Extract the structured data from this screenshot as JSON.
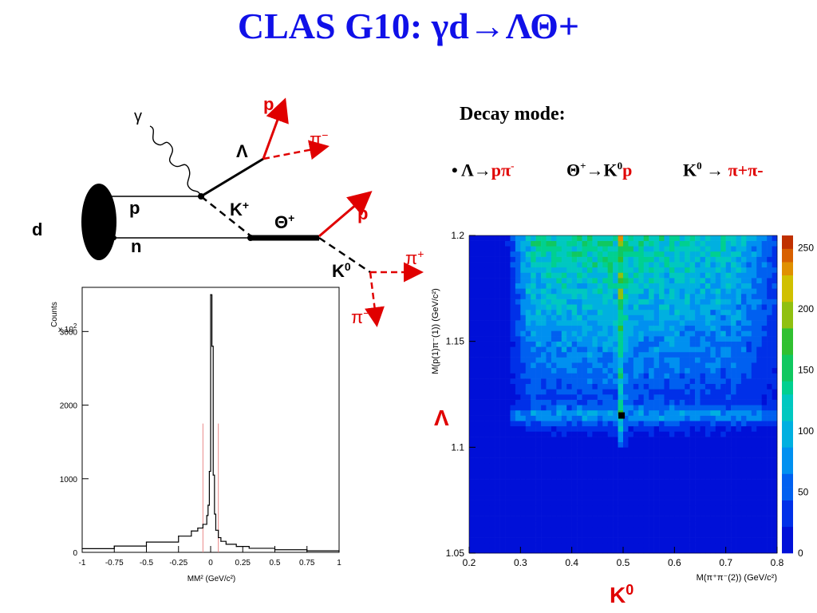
{
  "title": "CLAS G10: γd→ΛΘ+",
  "decay": {
    "heading": "Decay mode:",
    "bullet": "•",
    "lambda": {
      "parent": "Λ→",
      "products": "pπ",
      "charge": "-"
    },
    "theta": {
      "parent": "Θ",
      "charge": "+",
      "arrow": "→K",
      "zero": "0",
      "product": "p"
    },
    "kaon": {
      "parent": "K",
      "zero": "0",
      "arrow": " → ",
      "products": "π+π-"
    }
  },
  "diagram": {
    "gamma": "γ",
    "d": "d",
    "p": "p",
    "n": "n",
    "lambda": "Λ",
    "kplus": "K",
    "kplus_sup": "+",
    "theta": "Θ",
    "theta_sup": "+",
    "p_out1": "p",
    "pi_minus1": "π",
    "pi_minus1_sup": "−",
    "p_out2": "p",
    "k0": "K",
    "k0_sup": "0",
    "pi_plus": "π",
    "pi_plus_sup": "+",
    "pi_minus2": "π",
    "pi_minus2_sup": "−",
    "colors": {
      "black": "#000000",
      "red": "#e00000"
    }
  },
  "chart_data": [
    {
      "type": "histogram",
      "ylabel": "Counts",
      "yscale_label": "x 10",
      "yscale_exp": "2",
      "xlabel": "MM² (GeV/c²)",
      "xlim": [
        -1,
        1
      ],
      "ylim": [
        0,
        3600
      ],
      "x_ticks": [
        "-1",
        "-0.75",
        "-0.5",
        "-0.25",
        "0",
        "0.25",
        "0.5",
        "0.75",
        "1"
      ],
      "y_ticks": [
        "0",
        "1000",
        "2000",
        "3000"
      ],
      "x": [
        -1.0,
        -0.75,
        -0.5,
        -0.25,
        -0.15,
        -0.1,
        -0.06,
        -0.03,
        -0.02,
        -0.01,
        0.0,
        0.01,
        0.02,
        0.03,
        0.04,
        0.06,
        0.08,
        0.12,
        0.2,
        0.3,
        0.5,
        0.75,
        1.0
      ],
      "values": [
        50,
        85,
        140,
        220,
        290,
        330,
        380,
        500,
        640,
        1100,
        3500,
        2800,
        1050,
        520,
        300,
        200,
        150,
        110,
        80,
        55,
        35,
        20,
        12
      ],
      "series_color": "#000000",
      "cut_lines": [
        -0.06,
        0.06
      ],
      "cut_color": "#e88888"
    },
    {
      "type": "heatmap",
      "ylabel": "M(p(1)π⁻(1)) (GeV/c²)",
      "xlabel": "M(π⁺π⁻(2)) (GeV/c²)",
      "xlim": [
        0.2,
        0.8
      ],
      "ylim": [
        1.05,
        1.2
      ],
      "x_ticks": [
        "0.2",
        "0.3",
        "0.4",
        "0.5",
        "0.6",
        "0.7",
        "0.8"
      ],
      "y_ticks": [
        "1.05",
        "1.1",
        "1.15",
        "1.2"
      ],
      "zlim": [
        0,
        260
      ],
      "z_ticks": [
        "0",
        "50",
        "100",
        "150",
        "200",
        "250"
      ],
      "peak": {
        "x": 0.497,
        "y": 1.115,
        "z": 260
      },
      "lambda_label": "Λ",
      "k0_label": "K",
      "k0_sup": "0",
      "label_color": "#e00000"
    }
  ]
}
